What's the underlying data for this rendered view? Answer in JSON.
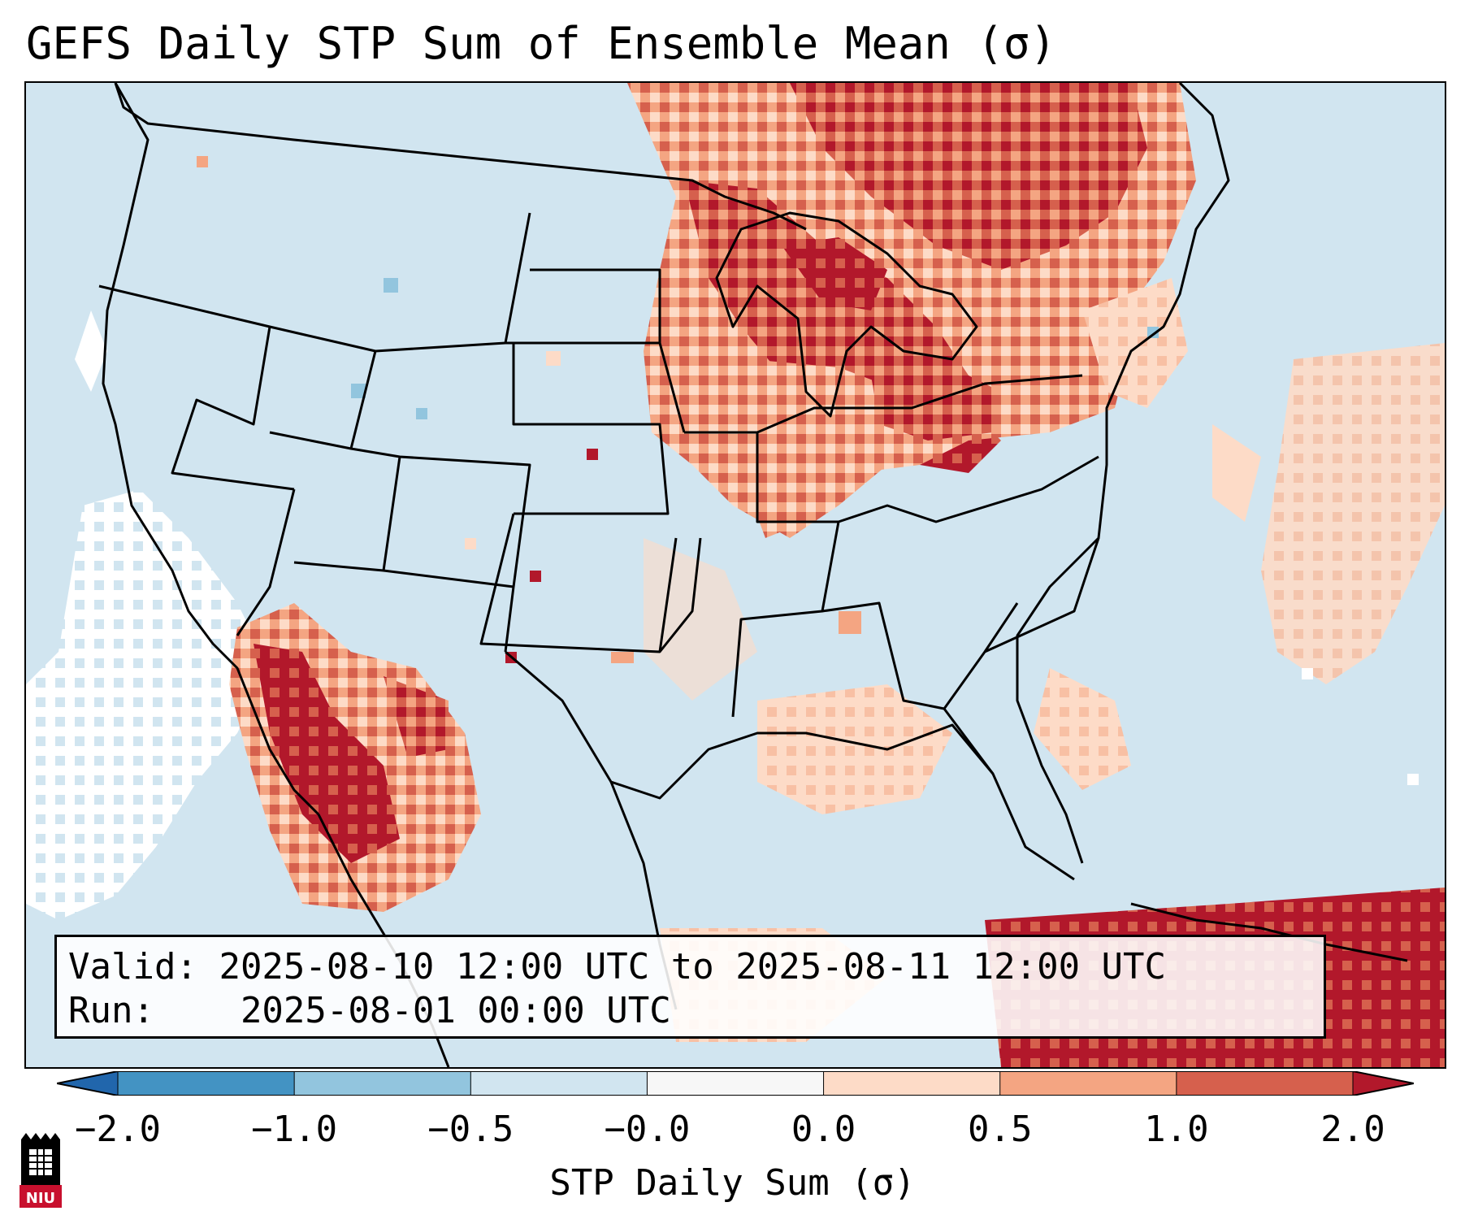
{
  "title": "GEFS Daily STP Sum of Ensemble Mean (σ)",
  "info": {
    "valid_label": "Valid:",
    "valid_value": "2025-08-10 12:00 UTC to 2025-08-11 12:00 UTC",
    "run_label": "Run:",
    "run_value": "2025-08-01 00:00 UTC"
  },
  "colorbar": {
    "label": "STP Daily Sum (σ)",
    "ticks": [
      "−2.0",
      "−1.0",
      "−0.5",
      "−0.0",
      "0.0",
      "0.5",
      "1.0",
      "2.0"
    ],
    "colors": [
      "#2166ac",
      "#4393c3",
      "#92c5de",
      "#d1e5f0",
      "#f7f7f7",
      "#fddbc7",
      "#f4a582",
      "#d6604d",
      "#b2182b"
    ],
    "under_color": "#2166ac",
    "over_color": "#b2182b"
  },
  "map": {
    "ocean_color": "#d1e5f0",
    "border_color": "#000000",
    "anomaly_regions": [
      {
        "name": "upper-midwest-great-lakes",
        "level": 1.0
      },
      {
        "name": "southeast-canada",
        "level": 1.0
      },
      {
        "name": "ohio-valley",
        "level": 1.0
      },
      {
        "name": "northwest-mexico",
        "level": 2.0
      },
      {
        "name": "gulf-of-mexico",
        "level": 0.5
      },
      {
        "name": "western-atlantic",
        "level": 0.5
      },
      {
        "name": "eastern-pacific",
        "level": -0.0
      }
    ]
  },
  "logo": {
    "text": "NIU",
    "colors": {
      "tower": "#000000",
      "shield": "#c8102e"
    }
  }
}
